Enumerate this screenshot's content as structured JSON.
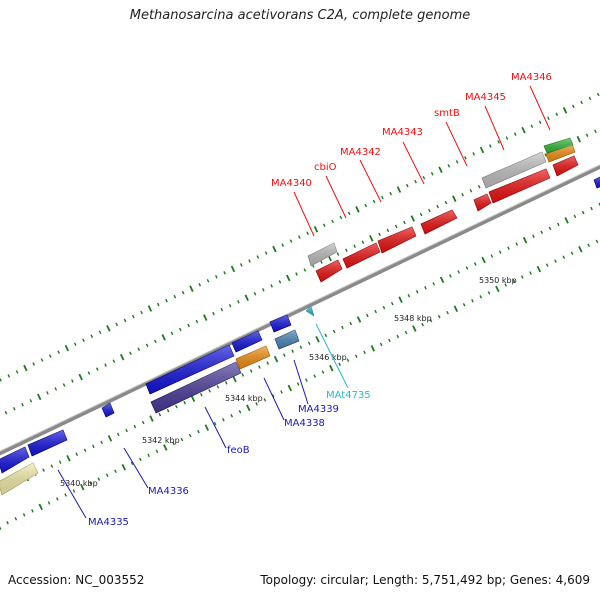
{
  "title": "Methanosarcina acetivorans C2A, complete genome",
  "accession": "Accession: NC_003552",
  "summary": "Topology: circular; Length: 5,751,492 bp; Genes: 4,609",
  "ticks": [
    {
      "label": "5340 kbp"
    },
    {
      "label": "5342 kbp"
    },
    {
      "label": "5344 kbp"
    },
    {
      "label": "5346 kbp"
    },
    {
      "label": "5348 kbp"
    },
    {
      "label": "5350 kbp"
    }
  ],
  "genes_top": [
    {
      "label": "MA4340",
      "color": "#ee1111"
    },
    {
      "label": "cbiO",
      "color": "#ee1111"
    },
    {
      "label": "MA4342",
      "color": "#ee1111"
    },
    {
      "label": "MA4343",
      "color": "#ee1111"
    },
    {
      "label": "smtB",
      "color": "#ee1111"
    },
    {
      "label": "MA4345",
      "color": "#ee1111"
    },
    {
      "label": "MA4346",
      "color": "#ee1111"
    }
  ],
  "genes_bottom": [
    {
      "label": "MA4335",
      "color": "#1a1ab0"
    },
    {
      "label": "MA4336",
      "color": "#1a1ab0"
    },
    {
      "label": "feoB",
      "color": "#1a1ab0"
    },
    {
      "label": "MA4338",
      "color": "#1a1ab0"
    },
    {
      "label": "MA4339",
      "color": "#1a1ab0"
    },
    {
      "label": "MAt4735",
      "color": "#29b6d8"
    }
  ],
  "colors": {
    "forward_cds": "#ee1111",
    "reverse_cds": "#1414e0",
    "pseudo": "#bbbbbb",
    "other_orange": "#f39012",
    "other_green": "#33bb33",
    "purple": "#4a3a9a",
    "steel": "#4a86b8",
    "pale_yellow": "#f3eeaa",
    "trna": "#29b6d8",
    "tick_green": "#1b7a1b",
    "backbone": "#888888"
  }
}
